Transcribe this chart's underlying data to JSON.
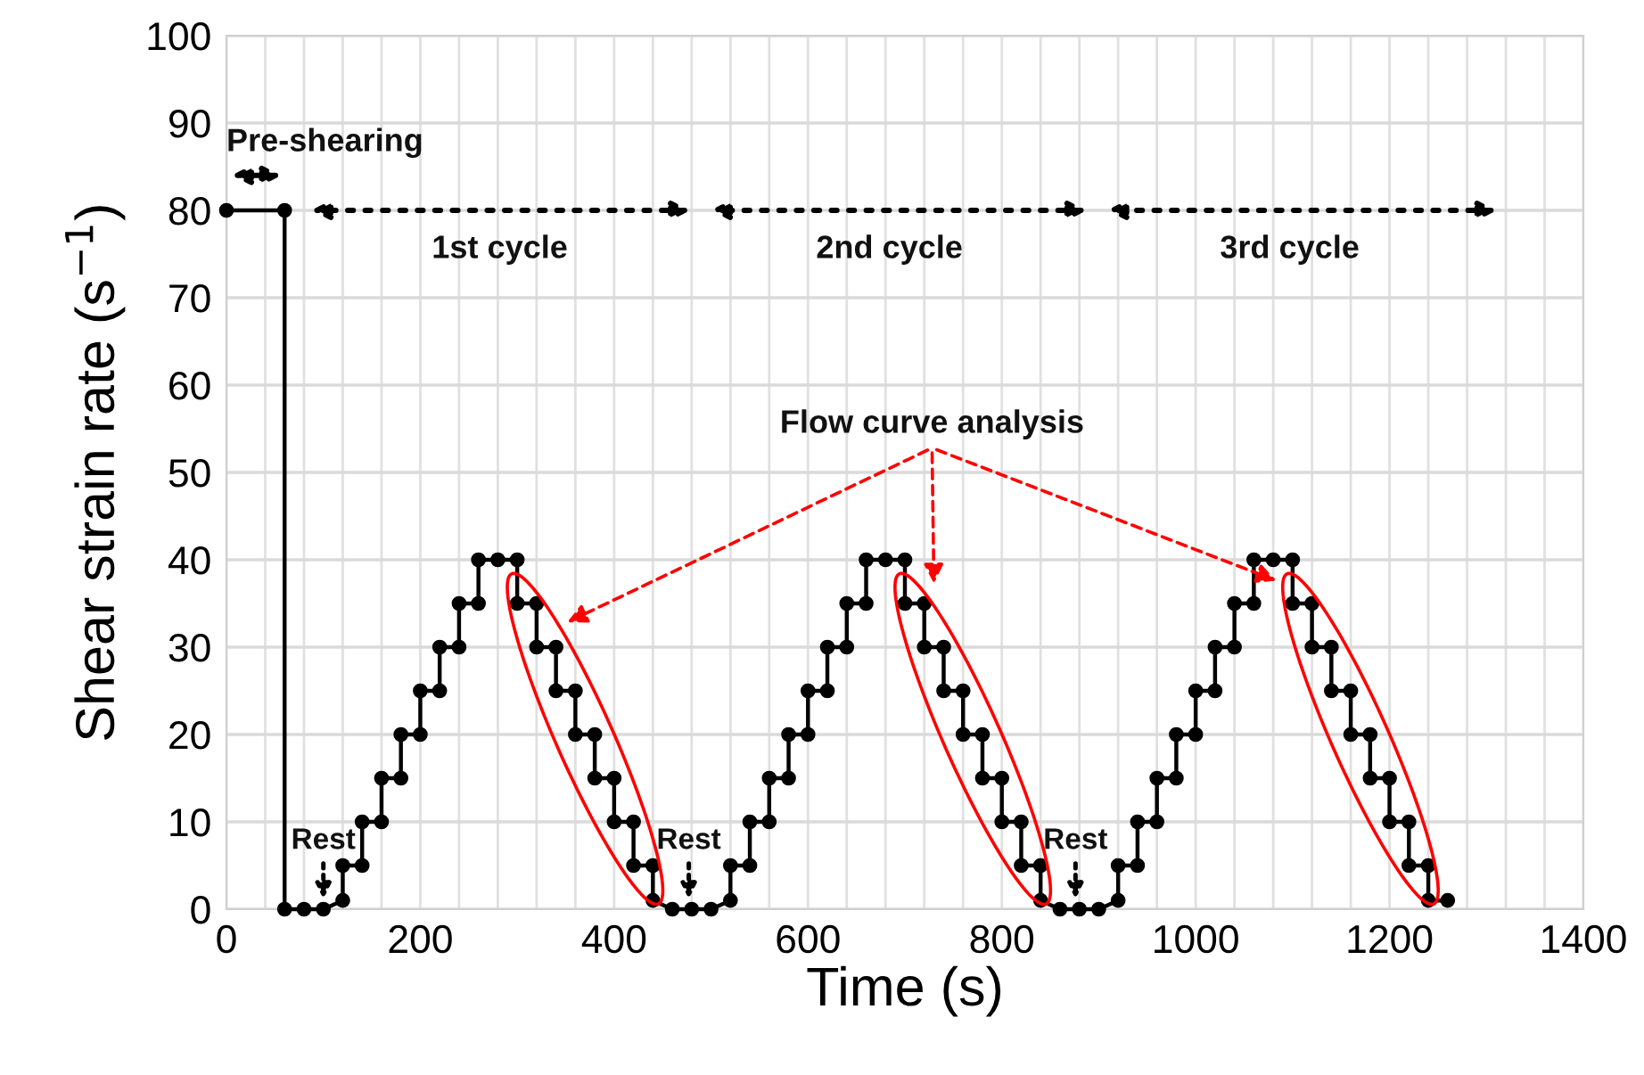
{
  "chart_data": {
    "type": "line",
    "xlabel": "Time (s)",
    "ylabel": "Shear strain rate (s$^{−1}$)",
    "xlim": [
      0,
      1400
    ],
    "xticks": [
      0,
      200,
      400,
      600,
      800,
      1000,
      1200,
      1400
    ],
    "ylim": [
      0,
      100
    ],
    "yticks": [
      0,
      10,
      20,
      30,
      40,
      50,
      60,
      70,
      80,
      90,
      100
    ],
    "grid": true,
    "marker": "circle",
    "line_style": "solid",
    "series": [
      {
        "color": "#000000",
        "x": [
          0,
          60,
          60,
          80,
          100,
          120,
          120,
          140,
          140,
          160,
          160,
          180,
          180,
          200,
          200,
          220,
          220,
          240,
          240,
          260,
          260,
          280,
          300,
          300,
          320,
          320,
          340,
          340,
          360,
          360,
          380,
          380,
          400,
          400,
          420,
          420,
          440,
          440,
          460,
          480,
          500,
          520,
          520,
          540,
          540,
          560,
          560,
          580,
          580,
          600,
          600,
          620,
          620,
          640,
          640,
          660,
          660,
          680,
          700,
          700,
          720,
          720,
          740,
          740,
          760,
          760,
          780,
          780,
          800,
          800,
          820,
          820,
          840,
          840,
          860,
          880,
          900,
          920,
          920,
          940,
          940,
          960,
          960,
          980,
          980,
          1000,
          1000,
          1020,
          1020,
          1040,
          1040,
          1060,
          1060,
          1080,
          1100,
          1100,
          1120,
          1120,
          1140,
          1140,
          1160,
          1160,
          1180,
          1180,
          1200,
          1200,
          1220,
          1220,
          1240,
          1240,
          1260
        ],
        "values": [
          80,
          80,
          0,
          0,
          0,
          1,
          5,
          5,
          10,
          10,
          15,
          15,
          20,
          20,
          25,
          25,
          30,
          30,
          35,
          35,
          40,
          40,
          40,
          35,
          35,
          30,
          30,
          25,
          25,
          20,
          20,
          15,
          15,
          10,
          10,
          5,
          5,
          1,
          0,
          0,
          0,
          1,
          5,
          5,
          10,
          10,
          15,
          15,
          20,
          20,
          25,
          25,
          30,
          30,
          35,
          35,
          40,
          40,
          40,
          35,
          35,
          30,
          30,
          25,
          25,
          20,
          20,
          15,
          15,
          10,
          10,
          5,
          5,
          1,
          0,
          0,
          0,
          1,
          5,
          5,
          10,
          10,
          15,
          15,
          20,
          20,
          25,
          25,
          30,
          30,
          35,
          35,
          40,
          40,
          40,
          35,
          35,
          30,
          30,
          25,
          25,
          20,
          20,
          15,
          15,
          10,
          10,
          5,
          5,
          1,
          1
        ]
      }
    ],
    "annotations": [
      "Pre-shearing",
      "1st cycle",
      "2nd cycle",
      "3rd cycle",
      "Flow curve analysis",
      "Rest",
      "Rest",
      "Rest"
    ]
  }
}
